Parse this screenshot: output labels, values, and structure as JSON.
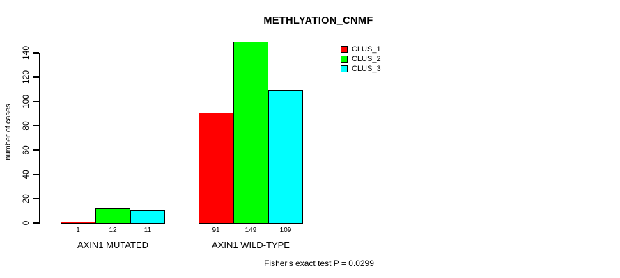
{
  "chart_data": {
    "type": "bar",
    "title": "METHLYATION_CNMF",
    "ylabel": "number of cases",
    "xlabel": "",
    "categories": [
      "AXIN1 MUTATED",
      "AXIN1 WILD-TYPE"
    ],
    "series": [
      {
        "name": "CLUS_1",
        "color": "#ff0000",
        "values": [
          1,
          91
        ]
      },
      {
        "name": "CLUS_2",
        "color": "#00ff00",
        "values": [
          12,
          149
        ]
      },
      {
        "name": "CLUS_3",
        "color": "#00ffff",
        "values": [
          11,
          109
        ]
      }
    ],
    "yticks": [
      0,
      20,
      40,
      60,
      80,
      100,
      120,
      140
    ],
    "ylim": [
      0,
      150
    ],
    "bar_value_labels": true,
    "grid": false,
    "legend_position": "top-right",
    "annotation": "Fisher's exact test P = 0.0299"
  }
}
